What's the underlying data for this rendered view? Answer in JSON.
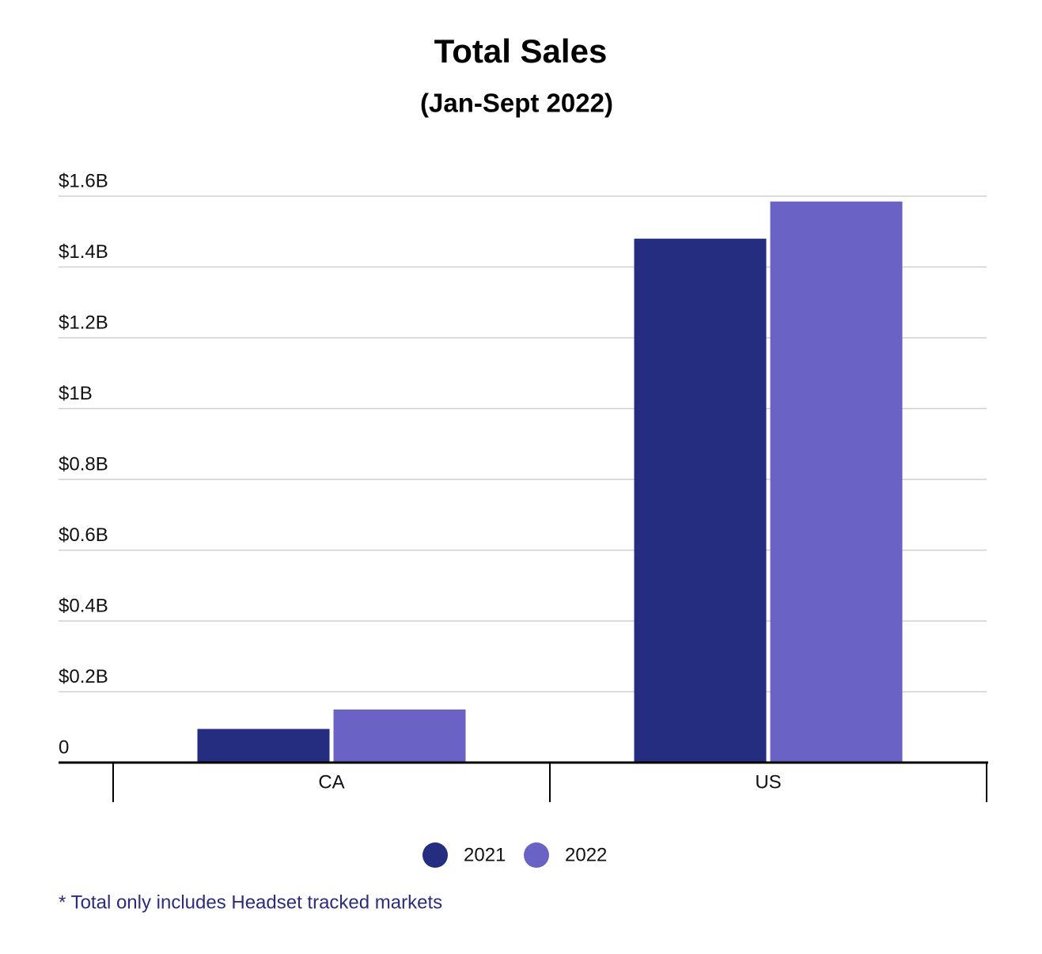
{
  "chart_data": {
    "type": "bar",
    "title": "Total Sales",
    "subtitle": "(Jan-Sept 2022)",
    "categories": [
      "CA",
      "US"
    ],
    "series": [
      {
        "name": "2021",
        "color": "#252d80",
        "values": [
          95000000,
          1480000000
        ]
      },
      {
        "name": "2022",
        "color": "#6b62c6",
        "values": [
          150000000,
          1585000000
        ]
      }
    ],
    "ylim": [
      0,
      1600000000
    ],
    "yticks": [
      0,
      {
        "value": 200000000,
        "label": "$0.2B"
      },
      {
        "value": 400000000,
        "label": "$0.4B"
      },
      {
        "value": 600000000,
        "label": "$0.6B"
      },
      {
        "value": 800000000,
        "label": "$0.8B"
      },
      {
        "value": 1000000000,
        "label": "$1B"
      },
      {
        "value": 1200000000,
        "label": "$1.2B"
      },
      {
        "value": 1400000000,
        "label": "$1.4B"
      },
      {
        "value": 1600000000,
        "label": "$1.6B"
      }
    ],
    "grid": true,
    "legend": "bottom",
    "footnote": "* Total only includes Headset tracked markets"
  }
}
